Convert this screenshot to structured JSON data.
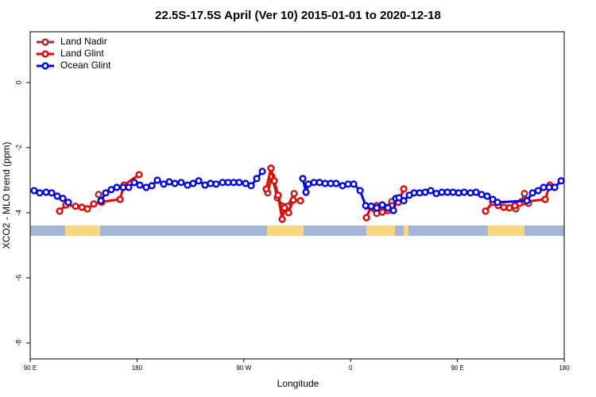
{
  "chart_data": {
    "type": "line",
    "title": "22.5S-17.5S April (Ver 10)   2015-01-01 to 2020-12-18",
    "x_label": "Longitude",
    "y_label": "XCO2 - MLO trend (ppm)",
    "xlim": [
      90,
      540
    ],
    "ylim": [
      -8.49,
      1.56
    ],
    "xticks": [
      {
        "value": 90,
        "label": "90 E"
      },
      180,
      {
        "value": 270,
        "label": "90 W"
      },
      {
        "value": 360,
        "label": "0"
      },
      {
        "value": 450,
        "label": "90 E"
      },
      {
        "value": 540,
        "label": "180"
      }
    ],
    "yticks": [
      0,
      -2,
      -4,
      -6,
      -8
    ],
    "legend": "top-left",
    "series": [
      {
        "name": "Land Nadir",
        "color": "#a52a2a",
        "x": [
          147.6,
          150.3,
          290.2,
          293.6,
          298.3,
          303.0,
          307.0,
          312.4,
          373.3,
          382.0,
          391.4,
          394.7,
          499.2,
          503.9,
          506.5,
          509.9
        ],
        "values": [
          -3.44,
          -3.68,
          -3.39,
          -2.88,
          -3.54,
          -3.8,
          -3.8,
          -3.41,
          -3.8,
          -4.02,
          -3.83,
          -3.66,
          -3.88,
          -3.66,
          -3.41,
          -3.71
        ]
      },
      {
        "name": "Land Glint",
        "color": "#ee0000",
        "x": [
          114.8,
          120.1,
          128.2,
          133.5,
          138.2,
          143.6,
          150.3,
          165.7,
          169.0,
          181.7,
          288.9,
          292.9,
          295.6,
          298.9,
          302.3,
          304.3,
          307.7,
          311.7,
          317.7,
          373.3,
          377.3,
          382.0,
          386.7,
          391.4,
          395.4,
          400.1,
          404.8,
          473.7,
          479.8,
          484.4,
          489.1,
          493.8,
          498.5,
          502.5,
          506.5,
          523.9,
          527.9
        ],
        "values": [
          -3.95,
          -3.76,
          -3.8,
          -3.83,
          -3.88,
          -3.73,
          -3.66,
          -3.59,
          -3.15,
          -2.83,
          -3.27,
          -2.63,
          -3.02,
          -3.46,
          -4.2,
          -3.85,
          -4.0,
          -3.61,
          -3.63,
          -4.15,
          -3.8,
          -3.78,
          -3.98,
          -3.93,
          -3.78,
          -3.68,
          -3.27,
          -3.95,
          -3.68,
          -3.78,
          -3.83,
          -3.85,
          -3.78,
          -3.71,
          -3.66,
          -3.59,
          -3.15
        ]
      },
      {
        "name": "Ocean Glint",
        "color": "#0000ee",
        "x": [
          93.3,
          98.0,
          103.4,
          108.1,
          112.8,
          117.5,
          122.1,
          149.6,
          153.6,
          158.3,
          163.0,
          168.4,
          173.0,
          177.7,
          182.4,
          187.8,
          192.5,
          197.2,
          202.5,
          207.2,
          211.9,
          217.2,
          222.6,
          227.3,
          232.0,
          237.3,
          242.0,
          246.7,
          252.1,
          256.8,
          261.4,
          266.1,
          271.5,
          276.2,
          280.9,
          285.6,
          319.7,
          322.4,
          324.4,
          329.1,
          333.8,
          338.5,
          343.2,
          347.8,
          353.2,
          357.9,
          362.6,
          368.0,
          372.7,
          377.3,
          382.0,
          386.7,
          391.4,
          396.1,
          398.1,
          400.8,
          404.8,
          409.5,
          413.5,
          418.2,
          422.8,
          427.5,
          432.2,
          436.9,
          441.6,
          446.3,
          451.0,
          455.7,
          461.0,
          465.7,
          470.4,
          475.1,
          479.8,
          483.8,
          508.6,
          513.3,
          518.0,
          522.6,
          527.3,
          532.0,
          537.4
        ],
        "values": [
          -3.32,
          -3.39,
          -3.37,
          -3.39,
          -3.49,
          -3.56,
          -3.68,
          -3.63,
          -3.39,
          -3.29,
          -3.22,
          -3.22,
          -3.22,
          -3.07,
          -3.15,
          -3.22,
          -3.17,
          -3.0,
          -3.12,
          -3.05,
          -3.1,
          -3.07,
          -3.15,
          -3.1,
          -3.02,
          -3.15,
          -3.1,
          -3.12,
          -3.07,
          -3.07,
          -3.07,
          -3.07,
          -3.1,
          -3.17,
          -2.95,
          -2.73,
          -2.95,
          -3.37,
          -3.12,
          -3.07,
          -3.07,
          -3.1,
          -3.1,
          -3.1,
          -3.17,
          -3.12,
          -3.12,
          -3.32,
          -3.78,
          -3.8,
          -3.85,
          -3.76,
          -3.85,
          -3.93,
          -3.56,
          -3.54,
          -3.63,
          -3.46,
          -3.39,
          -3.39,
          -3.37,
          -3.32,
          -3.41,
          -3.37,
          -3.37,
          -3.37,
          -3.39,
          -3.37,
          -3.39,
          -3.37,
          -3.44,
          -3.49,
          -3.59,
          -3.68,
          -3.63,
          -3.39,
          -3.32,
          -3.22,
          -3.22,
          -3.22,
          -3.02
        ]
      }
    ]
  }
}
